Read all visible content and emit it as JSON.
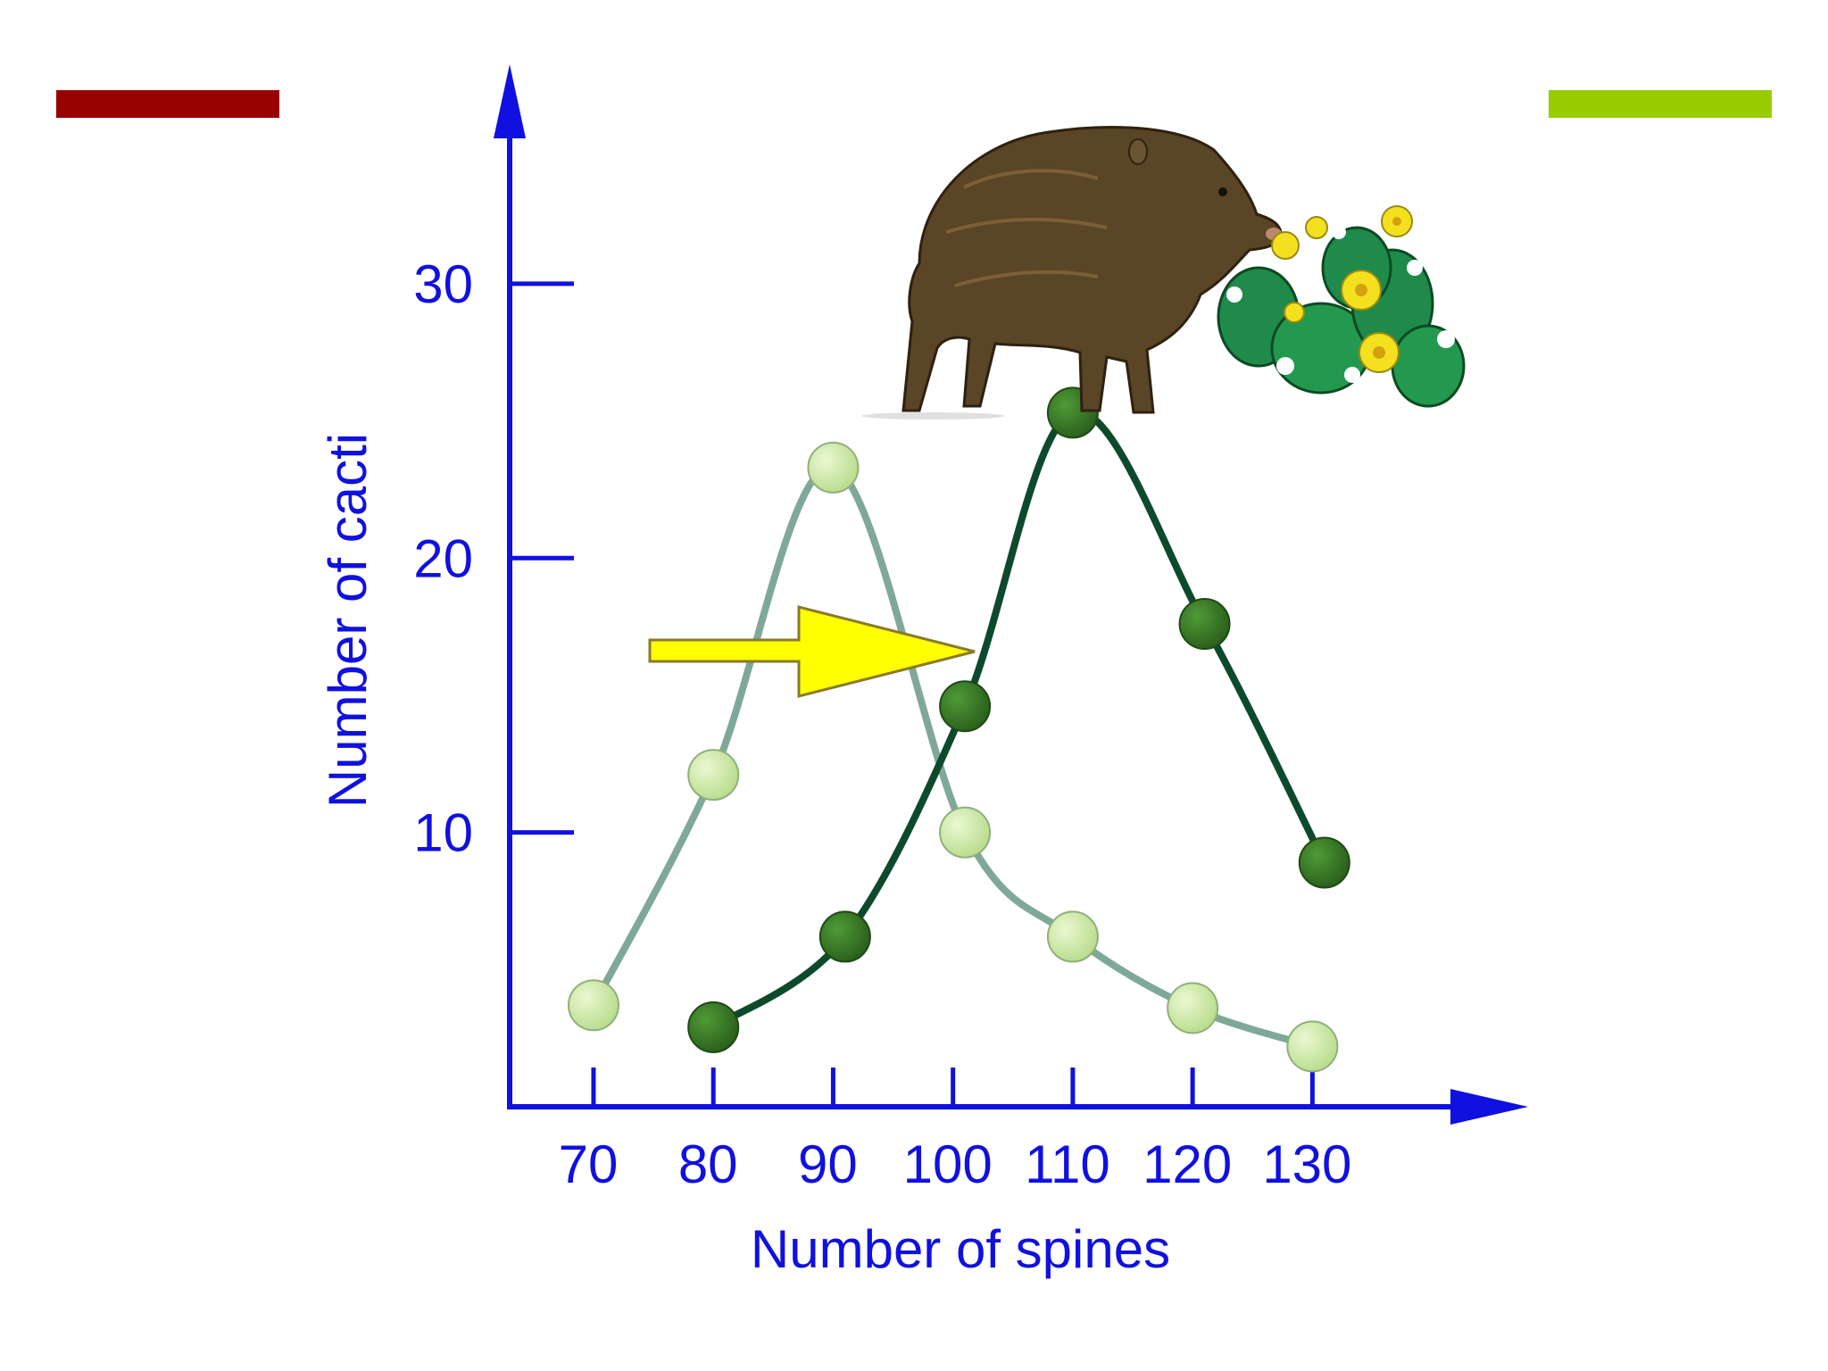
{
  "slide": {
    "accent_left_color": "#990000",
    "accent_right_color": "#99cc00"
  },
  "illustration": {
    "peccary": "peccary-icon",
    "cactus": "prickly-pear-cactus-icon"
  },
  "chart_data": {
    "type": "line",
    "xlabel": "Number of spines",
    "ylabel": "Number of cacti",
    "x_ticks": [
      70,
      80,
      90,
      100,
      110,
      120,
      130
    ],
    "y_ticks": [
      10,
      20,
      30
    ],
    "x_tick_labels": [
      "70",
      "80",
      "90",
      "100",
      "110",
      "120",
      "130"
    ],
    "y_tick_labels": [
      "10",
      "20",
      "30"
    ],
    "xlim": [
      63,
      148
    ],
    "ylim": [
      0,
      38
    ],
    "axis_color": "#1010e0",
    "arrow_color": "#ffff00",
    "series": [
      {
        "x": [
          70,
          80,
          90,
          101,
          110,
          120,
          130
        ],
        "y": [
          3.7,
          12.1,
          23.3,
          10,
          6.2,
          3.6,
          2.2
        ],
        "line_color": "#7fa898",
        "marker_color": "#c8e8a0"
      },
      {
        "x": [
          80,
          91,
          101,
          110,
          121,
          131
        ],
        "y": [
          2.9,
          6.2,
          14.6,
          25.3,
          17.6,
          8.9
        ],
        "line_color": "#0d4a2c",
        "marker_color": "#3a7a28"
      }
    ]
  }
}
